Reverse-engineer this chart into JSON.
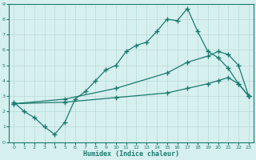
{
  "line1_x": [
    0,
    1,
    2,
    3,
    4,
    5,
    6,
    7,
    8,
    9,
    10,
    11,
    12,
    13,
    14,
    15,
    16,
    17,
    18,
    19,
    20,
    21,
    22,
    23
  ],
  "line1_y": [
    2.6,
    2.0,
    1.6,
    1.0,
    0.5,
    1.3,
    2.8,
    3.3,
    4.0,
    4.7,
    5.0,
    5.9,
    6.3,
    6.5,
    7.2,
    8.0,
    7.9,
    8.7,
    7.2,
    5.9,
    5.5,
    4.8,
    3.8,
    3.0
  ],
  "line2_x": [
    0,
    5,
    10,
    15,
    17,
    19,
    20,
    21,
    22,
    23
  ],
  "line2_y": [
    2.5,
    2.8,
    3.5,
    4.5,
    5.2,
    5.6,
    5.9,
    5.7,
    5.0,
    3.0
  ],
  "line3_x": [
    0,
    5,
    10,
    15,
    17,
    19,
    20,
    21,
    22,
    23
  ],
  "line3_y": [
    2.5,
    2.6,
    2.9,
    3.2,
    3.5,
    3.8,
    4.0,
    4.2,
    3.8,
    3.0
  ],
  "line_color": "#1a7a6e",
  "bg_color": "#d6f0ef",
  "grid_color": "#b8d8d6",
  "xlabel": "Humidex (Indice chaleur)",
  "xlim": [
    -0.5,
    23.5
  ],
  "ylim": [
    0,
    9
  ],
  "xticks": [
    0,
    1,
    2,
    3,
    4,
    5,
    6,
    7,
    8,
    9,
    10,
    11,
    12,
    13,
    14,
    15,
    16,
    17,
    18,
    19,
    20,
    21,
    22,
    23
  ],
  "yticks": [
    0,
    1,
    2,
    3,
    4,
    5,
    6,
    7,
    8,
    9
  ],
  "marker": "+",
  "markersize": 4,
  "linewidth": 0.9
}
